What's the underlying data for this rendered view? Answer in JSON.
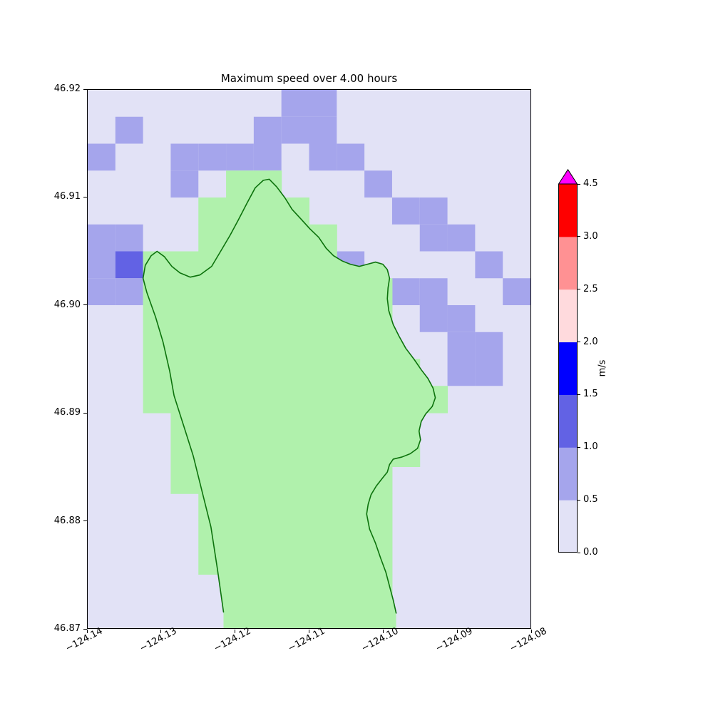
{
  "figure": {
    "title": "Maximum speed over 4.00 hours",
    "background": "#ffffff"
  },
  "colorbar": {
    "label": "m/s",
    "tick_labels": [
      "4.5",
      "3.0",
      "2.5",
      "2.0",
      "1.5",
      "1.0",
      "0.5",
      "0.0"
    ],
    "boundaries": [
      0.0,
      0.5,
      1.0,
      1.5,
      2.0,
      2.5,
      3.0,
      4.5
    ],
    "extend": "max"
  },
  "chart_data": {
    "type": "heatmap",
    "title": "Maximum speed over 4.00 hours",
    "xlabel": "",
    "ylabel": "",
    "x_range": [
      -124.14,
      -124.08
    ],
    "y_range": [
      46.87,
      46.92
    ],
    "x_tick_labels": [
      "−124.14",
      "−124.13",
      "−124.12",
      "−124.11",
      "−124.10",
      "−124.09",
      "−124.08"
    ],
    "y_tick_labels": [
      "46.92",
      "46.91",
      "46.90",
      "46.89",
      "46.88",
      "46.87"
    ],
    "units": "m/s",
    "grid": {
      "cols": 16,
      "rows": 20,
      "legend": {
        ".": "water 0.0-0.5 m/s",
        "b": "water 0.5-1.0 m/s",
        "B": "water 1.0-1.5 m/s",
        "g": "land cell"
      },
      "band_values": {
        ".": [
          0.0,
          0.5
        ],
        "b": [
          0.5,
          1.0
        ],
        "B": [
          1.0,
          1.5
        ]
      },
      "cells": [
        ".......bb.......",
        ".b....bbb.......",
        "b..bbbb.bb......",
        "...b.gg...b.....",
        "....gggg...bb...",
        "bb..ggggg...bb..",
        "bBgggggggb....b.",
        "bbgggggggggbb..b",
        "..ggggggggg.bb..",
        "..ggggggggg..bb.",
        "..gggggggggg.bb.",
        "..ggggggggggg...",
        "...ggggggggg....",
        "...ggggggggg....",
        "...gggggggg.....",
        "....ggggggg.....",
        "....ggggggg.....",
        "....ggggggg.....",
        ".....gggggg.....",
        ".....gggggg....."
      ]
    },
    "coastline": [
      [
        -124.1216,
        46.8715
      ],
      [
        -124.1224,
        46.8754
      ],
      [
        -124.1233,
        46.8794
      ],
      [
        -124.1245,
        46.8827
      ],
      [
        -124.1257,
        46.886
      ],
      [
        -124.1269,
        46.8886
      ],
      [
        -124.1283,
        46.8916
      ],
      [
        -124.1289,
        46.8939
      ],
      [
        -124.1298,
        46.8966
      ],
      [
        -124.1308,
        46.8989
      ],
      [
        -124.132,
        46.9012
      ],
      [
        -124.1325,
        46.9025
      ],
      [
        -124.1322,
        46.9037
      ],
      [
        -124.1314,
        46.9046
      ],
      [
        -124.1306,
        46.905
      ],
      [
        -124.1296,
        46.9045
      ],
      [
        -124.1286,
        46.9036
      ],
      [
        -124.1275,
        46.903
      ],
      [
        -124.1261,
        46.9026
      ],
      [
        -124.1248,
        46.9028
      ],
      [
        -124.1232,
        46.9036
      ],
      [
        -124.1219,
        46.9051
      ],
      [
        -124.1207,
        46.9065
      ],
      [
        -124.1196,
        46.9079
      ],
      [
        -124.1184,
        46.9095
      ],
      [
        -124.1173,
        46.9109
      ],
      [
        -124.1162,
        46.9116
      ],
      [
        -124.1154,
        46.9117
      ],
      [
        -124.1144,
        46.911
      ],
      [
        -124.1133,
        46.91
      ],
      [
        -124.1123,
        46.9089
      ],
      [
        -124.1111,
        46.908
      ],
      [
        -124.1099,
        46.9071
      ],
      [
        -124.1087,
        46.9063
      ],
      [
        -124.1077,
        46.9053
      ],
      [
        -124.1067,
        46.9046
      ],
      [
        -124.1055,
        46.9041
      ],
      [
        -124.1044,
        46.9038
      ],
      [
        -124.1032,
        46.9036
      ],
      [
        -124.1021,
        46.9038
      ],
      [
        -124.101,
        46.904
      ],
      [
        -124.1,
        46.9038
      ],
      [
        -124.0994,
        46.9033
      ],
      [
        -124.0991,
        46.9025
      ],
      [
        -124.0993,
        46.9016
      ],
      [
        -124.0994,
        46.9006
      ],
      [
        -124.0992,
        46.8995
      ],
      [
        -124.0986,
        46.8982
      ],
      [
        -124.0978,
        46.8971
      ],
      [
        -124.0969,
        46.896
      ],
      [
        -124.0958,
        46.895
      ],
      [
        -124.0948,
        46.894
      ],
      [
        -124.0939,
        46.8932
      ],
      [
        -124.0932,
        46.8923
      ],
      [
        -124.0929,
        46.8914
      ],
      [
        -124.0933,
        46.8906
      ],
      [
        -124.0942,
        46.8899
      ],
      [
        -124.0948,
        46.8892
      ],
      [
        -124.0951,
        46.8883
      ],
      [
        -124.0949,
        46.8875
      ],
      [
        -124.0953,
        46.8867
      ],
      [
        -124.0963,
        46.8862
      ],
      [
        -124.0974,
        46.8859
      ],
      [
        -124.0986,
        46.8857
      ],
      [
        -124.0991,
        46.8852
      ],
      [
        -124.0994,
        46.8845
      ],
      [
        -124.1001,
        46.8839
      ],
      [
        -124.1009,
        46.8832
      ],
      [
        -124.1016,
        46.8824
      ],
      [
        -124.102,
        46.8815
      ],
      [
        -124.1022,
        46.8806
      ],
      [
        -124.1018,
        46.8792
      ],
      [
        -124.101,
        46.8779
      ],
      [
        -124.1003,
        46.8765
      ],
      [
        -124.0996,
        46.8752
      ],
      [
        -124.0991,
        46.8739
      ],
      [
        -124.0986,
        46.8726
      ],
      [
        -124.0982,
        46.8714
      ]
    ],
    "colors": {
      "band_0_05": "#e2e2f6",
      "band_05_10": "#a5a5ec",
      "band_10_15": "#6262e4",
      "band_15_20": "#0000ff",
      "band_20_25": "#ffdadd",
      "band_25_30": "#ff9193",
      "band_30_45": "#fe0000",
      "over": "#ff00fe",
      "land": "#b0f1ac",
      "coast": "#0c720c"
    }
  }
}
